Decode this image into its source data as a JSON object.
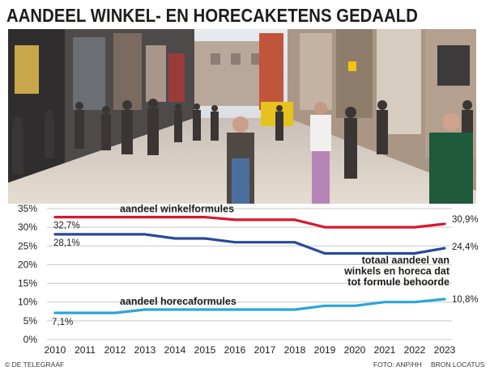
{
  "headline": "AANDEEL WINKEL- EN HORECAKETENS GEDAALD",
  "footer": {
    "publisher": "© DE TELEGRAAF",
    "photo_credit": "FOTO: ANP/HH",
    "source": "BRON LOCATUS"
  },
  "colors": {
    "winkel": "#d7182a",
    "totaal": "#264a9a",
    "horeca": "#2aa6d8",
    "grid": "#c9c9c9"
  },
  "chart_data": {
    "type": "line",
    "x": [
      2010,
      2011,
      2012,
      2013,
      2014,
      2015,
      2016,
      2017,
      2018,
      2019,
      2020,
      2021,
      2022,
      2023
    ],
    "ylim": [
      0,
      35
    ],
    "yticks": [
      "0%",
      "5%",
      "10%",
      "15%",
      "20%",
      "25%",
      "30%",
      "35%"
    ],
    "grid": true,
    "series": [
      {
        "key": "winkel",
        "name": "aandeel winkelformules",
        "values": [
          32.7,
          32.7,
          32.7,
          32.7,
          32.7,
          32.7,
          32.0,
          32.0,
          32.0,
          30.0,
          30.0,
          30.0,
          30.0,
          30.9
        ],
        "start_label": "32,7%",
        "end_label": "30,9%"
      },
      {
        "key": "totaal",
        "name": "totaal aandeel van winkels en horeca dat tot formule behoorde",
        "name_lines": [
          "totaal aandeel van",
          "winkels en horeca dat",
          "tot formule behoorde"
        ],
        "values": [
          28.1,
          28.1,
          28.1,
          28.1,
          27.0,
          27.0,
          26.0,
          26.0,
          26.0,
          23.0,
          23.0,
          23.0,
          23.0,
          24.4
        ],
        "start_label": "28,1%",
        "end_label": "24,4%"
      },
      {
        "key": "horeca",
        "name": "aandeel horecaformules",
        "values": [
          7.1,
          7.1,
          7.1,
          8.0,
          8.0,
          8.0,
          8.0,
          8.0,
          8.0,
          9.0,
          9.0,
          10.0,
          10.0,
          10.8
        ],
        "start_label": "7,1%",
        "end_label": "10,8%"
      }
    ]
  }
}
